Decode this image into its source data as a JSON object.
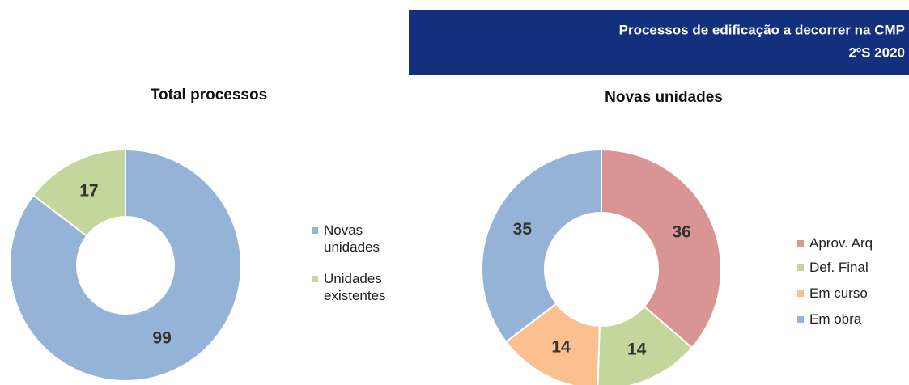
{
  "header": {
    "lines": [
      "Processos de edificação a decorrer na CMP",
      "2ºS 2020"
    ]
  },
  "chart_data": [
    {
      "type": "pie",
      "title": "Total processos",
      "categories": [
        "Novas unidades",
        "Unidades existentes"
      ],
      "values": [
        99,
        17
      ],
      "colors": [
        "#95b3d7",
        "#c3d69b"
      ]
    },
    {
      "type": "pie",
      "title": "Novas unidades",
      "categories": [
        "Aprov. Arq",
        "Def. Final",
        "Em curso",
        "Em obra"
      ],
      "values": [
        36,
        14,
        14,
        35
      ],
      "colors": [
        "#d99594",
        "#c3d69b",
        "#fac090",
        "#95b3d7"
      ]
    }
  ]
}
